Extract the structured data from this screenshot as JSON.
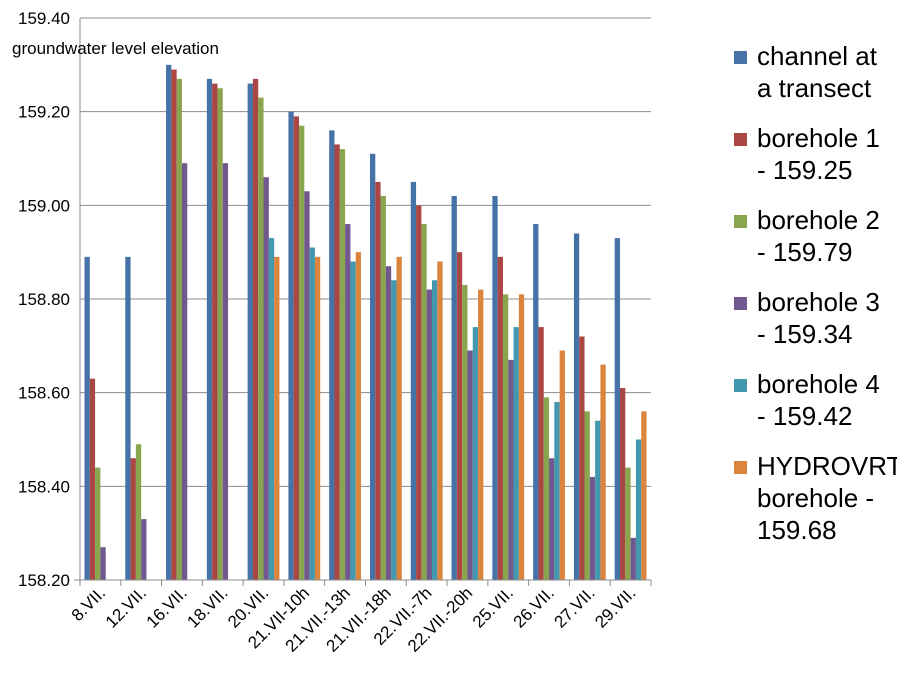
{
  "chart_data": {
    "type": "bar",
    "title": "groundwater level elevation",
    "xlabel": "",
    "ylabel": "",
    "ylim": [
      158.2,
      159.4
    ],
    "yticks": [
      "158.20",
      "158.40",
      "158.60",
      "158.80",
      "159.00",
      "159.20",
      "159.40"
    ],
    "grid": "horizontal",
    "legend_position": "right",
    "categories": [
      "8.VII.",
      "12.VII.",
      "16.VII.",
      "18.VII.",
      "20.VII.",
      "21.VII-10h",
      "21.VII.-13h",
      "21.VII.-18h",
      "22.VII.-7h",
      "22.VII.-20h",
      "25.VII.",
      "26.VII.",
      "27.VII.",
      "29.VII."
    ],
    "series": [
      {
        "name": "channel at a transect",
        "color": "#4572A7",
        "values": [
          158.89,
          158.89,
          159.3,
          159.27,
          159.26,
          159.2,
          159.16,
          159.11,
          159.05,
          159.02,
          159.02,
          158.96,
          158.94,
          158.93
        ]
      },
      {
        "name": "borehole 1 - 159.25",
        "color": "#AA4643",
        "values": [
          158.63,
          158.46,
          159.29,
          159.26,
          159.27,
          159.19,
          159.13,
          159.05,
          159.0,
          158.9,
          158.89,
          158.74,
          158.72,
          158.61
        ]
      },
      {
        "name": "borehole 2 - 159.79",
        "color": "#89A54E",
        "values": [
          158.44,
          158.49,
          159.27,
          159.25,
          159.23,
          159.17,
          159.12,
          159.02,
          158.96,
          158.83,
          158.81,
          158.59,
          158.56,
          158.44
        ]
      },
      {
        "name": "borehole 3 - 159.34",
        "color": "#71588F",
        "values": [
          158.27,
          158.33,
          159.09,
          159.09,
          159.06,
          159.03,
          158.96,
          158.87,
          158.82,
          158.69,
          158.67,
          158.46,
          158.42,
          158.29
        ]
      },
      {
        "name": "borehole 4 - 159.42",
        "color": "#4198AF",
        "values": [
          null,
          null,
          null,
          null,
          158.93,
          158.91,
          158.88,
          158.84,
          158.84,
          158.74,
          158.74,
          158.58,
          158.54,
          158.5
        ]
      },
      {
        "name": "HYDROVRT borehole - 159.68",
        "color": "#DB843D",
        "values": [
          null,
          null,
          null,
          null,
          158.89,
          158.89,
          158.9,
          158.89,
          158.88,
          158.82,
          158.81,
          158.69,
          158.66,
          158.56
        ]
      }
    ]
  },
  "legend": [
    {
      "label": "channel at\na transect",
      "color": "#4572A7"
    },
    {
      "label": "borehole 1\n- 159.25",
      "color": "#AA4643"
    },
    {
      "label": "borehole 2\n- 159.79",
      "color": "#89A54E"
    },
    {
      "label": "borehole 3\n- 159.34",
      "color": "#71588F"
    },
    {
      "label": "borehole 4\n- 159.42",
      "color": "#4198AF"
    },
    {
      "label": "HYDROVRT\nborehole -\n159.68",
      "color": "#DB843D"
    }
  ]
}
